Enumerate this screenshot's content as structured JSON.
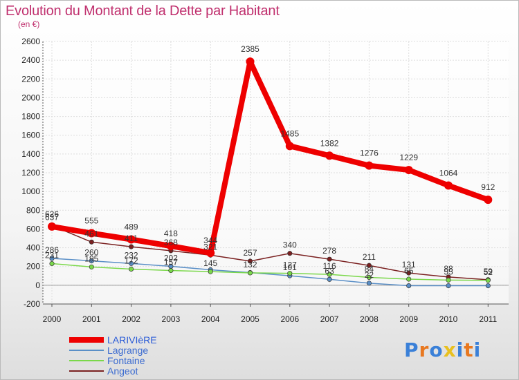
{
  "header": {
    "title": "Evolution du Montant de la Dette par Habitant",
    "subtitle": "(en €)"
  },
  "colors": {
    "title": "#c0306e",
    "larivière": "#ee0000",
    "lagrange": "#5a8fc7",
    "fontaine": "#7ad84a",
    "angeot": "#7a2020"
  },
  "logo": {
    "letters": [
      "P",
      "r",
      "o",
      "x",
      "i",
      "t",
      "i"
    ],
    "colors": [
      "#3a80d8",
      "#e87820",
      "#3a80d8",
      "#e8c020",
      "#3a80d8",
      "#e87820",
      "#3a80d8"
    ]
  },
  "chart_data": {
    "type": "line",
    "title": "Evolution du Montant de la Dette par Habitant",
    "subtitle": "(en €)",
    "xlabel": "",
    "ylabel": "",
    "x": [
      "2000",
      "2001",
      "2002",
      "2003",
      "2004",
      "2005",
      "2006",
      "2007",
      "2008",
      "2009",
      "2010",
      "2011"
    ],
    "ylim": [
      -200,
      2600
    ],
    "yticks": [
      "-200",
      "0",
      "200",
      "400",
      "600",
      "800",
      "1000",
      "1200",
      "1400",
      "1600",
      "1800",
      "2000",
      "2200",
      "2400",
      "2600"
    ],
    "grid": true,
    "legend_position": "bottom-left",
    "series": [
      {
        "name": "LARIVIèRE",
        "key": "larivière",
        "color": "#ee0000",
        "width": 8,
        "values": [
          626,
          555,
          489,
          418,
          344,
          2385,
          1485,
          1382,
          1276,
          1229,
          1064,
          912
        ],
        "labels": [
          "626",
          "555",
          "489",
          "418",
          "344",
          "2385",
          "1485",
          "1382",
          "1276",
          "1229",
          "1064",
          "912"
        ]
      },
      {
        "name": "Lagrange",
        "key": "lagrange",
        "color": "#5a8fc7",
        "width": 1.5,
        "values": [
          286,
          260,
          232,
          202,
          165,
          135,
          101,
          63,
          22,
          -5,
          -5,
          -5
        ],
        "labels": [
          "286",
          "260",
          "232",
          "202",
          "",
          "",
          "101",
          "63",
          "22",
          "",
          "",
          ""
        ]
      },
      {
        "name": "Fontaine",
        "key": "fontaine",
        "color": "#7ad84a",
        "width": 1.5,
        "values": [
          231,
          195,
          172,
          157,
          145,
          132,
          127,
          116,
          84,
          65,
          55,
          52
        ],
        "labels": [
          "231",
          "195",
          "172",
          "157",
          "145",
          "132",
          "127",
          "116",
          "84",
          "65",
          "55",
          "52"
        ]
      },
      {
        "name": "Angeot",
        "key": "angeot",
        "color": "#7a2020",
        "width": 1.5,
        "values": [
          637,
          461,
          411,
          368,
          321,
          257,
          340,
          278,
          211,
          131,
          88,
          59
        ],
        "labels": [
          "637",
          "461",
          "411",
          "368",
          "321",
          "257",
          "340",
          "278",
          "211",
          "131",
          "88",
          "59"
        ]
      }
    ]
  }
}
